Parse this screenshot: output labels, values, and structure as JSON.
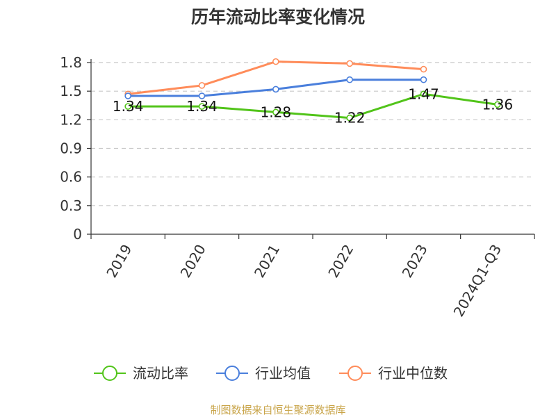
{
  "chart_data": {
    "type": "line",
    "title": "历年流动比率变化情况",
    "categories": [
      "2019",
      "2020",
      "2021",
      "2022",
      "2023",
      "2024Q1-Q3"
    ],
    "ylim": [
      0,
      1.8
    ],
    "yticks": [
      "0",
      "0.3",
      "0.6",
      "0.9",
      "1.2",
      "1.5",
      "1.8"
    ],
    "grid": true,
    "legend_position": "bottom",
    "series": [
      {
        "name": "流动比率",
        "color": "#52c41a",
        "values": [
          1.34,
          1.34,
          1.28,
          1.22,
          1.47,
          1.36
        ],
        "labels": [
          "1.34",
          "1.34",
          "1.28",
          "1.22",
          "1.47",
          "1.36"
        ]
      },
      {
        "name": "行业均值",
        "color": "#4a7fdc",
        "values": [
          1.45,
          1.45,
          1.52,
          1.62,
          1.62,
          null
        ]
      },
      {
        "name": "行业中位数",
        "color": "#ff8c5a",
        "values": [
          1.47,
          1.56,
          1.81,
          1.79,
          1.73,
          null
        ]
      }
    ]
  },
  "source": {
    "text": "制图数据来自恒生聚源数据库",
    "color": "#c9a54a"
  }
}
